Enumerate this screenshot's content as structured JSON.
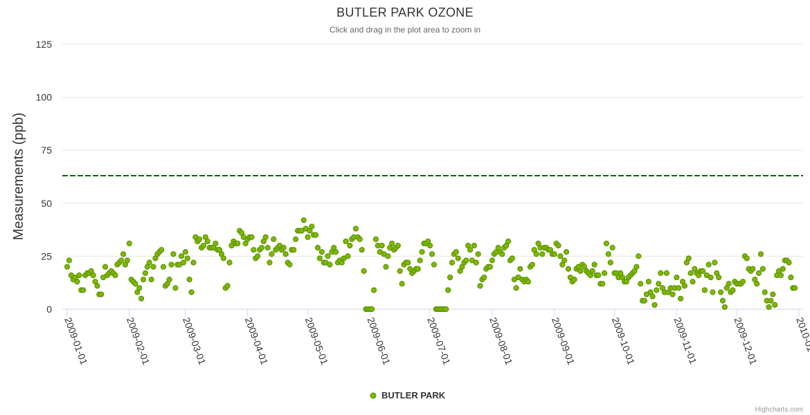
{
  "chart_data": {
    "type": "scatter",
    "title": "BUTLER PARK OZONE",
    "subtitle": "Click and drag in the plot area to zoom in",
    "ylabel": "Measurements (ppb)",
    "xlabel": "",
    "ylim": [
      0,
      125
    ],
    "yticks": [
      0,
      25,
      50,
      75,
      100,
      125
    ],
    "xlim": [
      "2009-01-01",
      "2010-01-01"
    ],
    "xticks": [
      "2009-01-01",
      "2009-02-01",
      "2009-03-01",
      "2009-04-01",
      "2009-05-01",
      "2009-06-01",
      "2009-07-01",
      "2009-08-01",
      "2009-09-01",
      "2009-10-01",
      "2009-11-01",
      "2009-12-01",
      "2010-01-01"
    ],
    "threshold": {
      "value": 63,
      "color": "#006400",
      "style": "dashed"
    },
    "series": [
      {
        "name": "BUTLER PARK",
        "color": "#7cb900",
        "start_date": "2009-01-01",
        "values": [
          20,
          23,
          16,
          14,
          15,
          13,
          16,
          9,
          9,
          16,
          17,
          17,
          18,
          16,
          13,
          11,
          7,
          7,
          15,
          20,
          16,
          17,
          18,
          17,
          16,
          21,
          22,
          23,
          26,
          21,
          23,
          31,
          14,
          13,
          12,
          8,
          10,
          5,
          14,
          17,
          20,
          22,
          14,
          20,
          24,
          26,
          27,
          28,
          20,
          11,
          12,
          14,
          21,
          26,
          10,
          21,
          21,
          25,
          22,
          27,
          24,
          14,
          8,
          22,
          34,
          32,
          33,
          29,
          30,
          34,
          32,
          29,
          29,
          29,
          31,
          28,
          28,
          26,
          24,
          10,
          11,
          22,
          30,
          32,
          31,
          31,
          37,
          36,
          34,
          31,
          33,
          34,
          34,
          28,
          24,
          25,
          28,
          29,
          32,
          34,
          29,
          22,
          26,
          33,
          28,
          29,
          30,
          28,
          29,
          26,
          22,
          21,
          28,
          28,
          33,
          37,
          37,
          37,
          42,
          38,
          34,
          37,
          39,
          35,
          35,
          29,
          24,
          27,
          22,
          22,
          25,
          21,
          27,
          29,
          27,
          22,
          23,
          22,
          24,
          32,
          25,
          30,
          33,
          34,
          38,
          34,
          33,
          28,
          18,
          0,
          0,
          0,
          0,
          9,
          33,
          30,
          27,
          30,
          26,
          20,
          25,
          29,
          31,
          28,
          29,
          30,
          18,
          12,
          21,
          22,
          22,
          19,
          17,
          18,
          19,
          19,
          23,
          27,
          31,
          31,
          32,
          30,
          26,
          21,
          0,
          0,
          0,
          0,
          0,
          0,
          9,
          15,
          22,
          26,
          27,
          24,
          18,
          20,
          22,
          23,
          30,
          28,
          23,
          30,
          22,
          26,
          11,
          14,
          15,
          19,
          20,
          20,
          23,
          26,
          27,
          29,
          27,
          26,
          29,
          30,
          32,
          23,
          24,
          14,
          10,
          15,
          19,
          14,
          13,
          14,
          13,
          20,
          21,
          28,
          26,
          31,
          29,
          26,
          29,
          29,
          28,
          28,
          26,
          26,
          31,
          30,
          25,
          21,
          23,
          27,
          19,
          15,
          13,
          14,
          19,
          20,
          18,
          21,
          20,
          18,
          17,
          16,
          18,
          21,
          16,
          16,
          12,
          12,
          17,
          31,
          26,
          22,
          29,
          17,
          17,
          15,
          17,
          15,
          13,
          13,
          15,
          16,
          17,
          18,
          20,
          25,
          12,
          4,
          4,
          7,
          13,
          8,
          6,
          2,
          9,
          12,
          17,
          10,
          8,
          17,
          8,
          10,
          7,
          10,
          15,
          10,
          5,
          13,
          11,
          22,
          24,
          17,
          13,
          19,
          17,
          16,
          18,
          18,
          9,
          16,
          21,
          15,
          8,
          22,
          17,
          15,
          8,
          4,
          1,
          10,
          12,
          8,
          9,
          13,
          12,
          12,
          12,
          13,
          25,
          24,
          19,
          18,
          19,
          14,
          12,
          17,
          26,
          19,
          8,
          4,
          1,
          4,
          7,
          2,
          16,
          18,
          16,
          19,
          23,
          23,
          22,
          15,
          10,
          10
        ]
      }
    ],
    "legend": {
      "label": "BUTLER PARK",
      "position": "bottom-center"
    },
    "credits": "Highcharts.com"
  }
}
